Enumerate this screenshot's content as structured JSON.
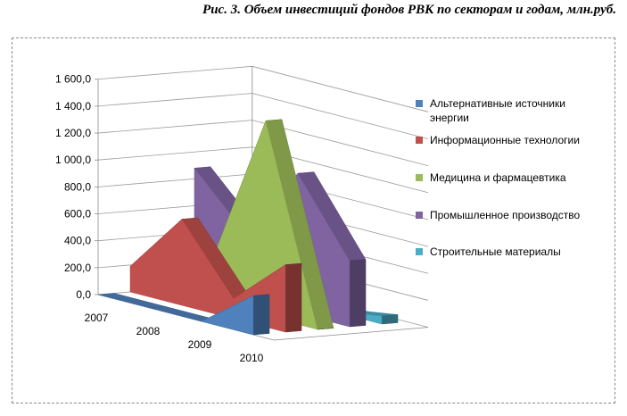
{
  "caption": "Рис. 3. Объем инвестиций фондов РВК по секторам и годам, млн.руб.",
  "chart_data": {
    "type": "area",
    "subtype": "3d-area",
    "categories": [
      "2007",
      "2008",
      "2009",
      "2010"
    ],
    "ylim": [
      0,
      1600
    ],
    "yticks": [
      "0,0",
      "200,0",
      "400,0",
      "600,0",
      "800,0",
      "1 000,0",
      "1 200,0",
      "1 400,0",
      "1 600,0"
    ],
    "grid": true,
    "legend_position": "right",
    "series": [
      {
        "name": "Альтернативные источники энергии",
        "color": "#4f81bd",
        "values": [
          0,
          0,
          0,
          290
        ]
      },
      {
        "name": "Информационные технологии",
        "color": "#c0504d",
        "values": [
          190,
          640,
          150,
          500
        ]
      },
      {
        "name": "Медицина и фармацевтика",
        "color": "#9bbb59",
        "values": [
          0,
          350,
          1450,
          0
        ]
      },
      {
        "name": "Промышленное производство",
        "color": "#8064a2",
        "values": [
          880,
          490,
          1040,
          490
        ]
      },
      {
        "name": "Строительные материалы",
        "color": "#4bacc6",
        "values": [
          0,
          0,
          0,
          60
        ]
      }
    ]
  }
}
